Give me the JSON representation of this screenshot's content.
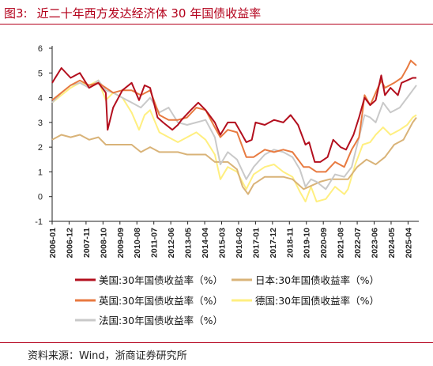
{
  "figure": {
    "label": "图3:",
    "title": "近二十年西方发达经济体 30 年国债收益率",
    "source": "资料来源：Wind，浙商证券研究所"
  },
  "chart_data": {
    "type": "line",
    "title": "近二十年西方发达经济体 30 年国债收益率",
    "xlabel": "",
    "ylabel": "",
    "ylim": [
      -1,
      6
    ],
    "yticks": [
      "-1",
      "0",
      "1",
      "2",
      "3",
      "4",
      "5",
      "6"
    ],
    "xticks": [
      "2006-01",
      "2006-12",
      "2007-11",
      "2008-10",
      "2009-09",
      "2010-08",
      "2011-07",
      "2012-06",
      "2013-05",
      "2014-04",
      "2015-03",
      "2016-02",
      "2017-01",
      "2017-12",
      "2018-11",
      "2019-10",
      "2020-09",
      "2021-08",
      "2022-07",
      "2023-06",
      "2024-05",
      "2025-04"
    ],
    "grid": false,
    "legend_position": "bottom",
    "series": [
      {
        "name": "美国:30年国债收益率（%）",
        "color": "#b30f1e",
        "x": [
          2006.0,
          2006.5,
          2007.0,
          2007.5,
          2008.0,
          2008.5,
          2008.9,
          2009.0,
          2009.3,
          2009.8,
          2010.3,
          2010.7,
          2011.0,
          2011.3,
          2011.7,
          2012.0,
          2012.5,
          2012.8,
          2013.0,
          2013.5,
          2013.9,
          2014.3,
          2014.8,
          2015.1,
          2015.5,
          2015.9,
          2016.2,
          2016.5,
          2016.8,
          2017.0,
          2017.5,
          2018.0,
          2018.5,
          2018.9,
          2019.3,
          2019.7,
          2019.9,
          2020.2,
          2020.5,
          2020.9,
          2021.2,
          2021.6,
          2021.9,
          2022.3,
          2022.6,
          2022.9,
          2023.2,
          2023.5,
          2023.8,
          2024.0,
          2024.3,
          2024.7,
          2024.9,
          2025.2,
          2025.5,
          2025.7
        ],
        "values": [
          4.6,
          5.2,
          4.8,
          5.0,
          4.4,
          4.6,
          4.2,
          2.7,
          3.6,
          4.3,
          4.6,
          3.9,
          4.5,
          4.4,
          3.2,
          3.0,
          2.7,
          2.9,
          3.1,
          3.5,
          3.8,
          3.5,
          3.0,
          2.5,
          3.0,
          3.0,
          2.6,
          2.2,
          2.3,
          3.0,
          2.9,
          3.1,
          3.0,
          3.3,
          2.9,
          2.1,
          2.2,
          1.4,
          1.4,
          1.6,
          2.3,
          2.0,
          1.9,
          2.5,
          3.2,
          4.0,
          3.7,
          3.9,
          4.9,
          4.1,
          4.4,
          4.1,
          4.6,
          4.7,
          4.8,
          4.8
        ]
      },
      {
        "name": "日本:30年国债收益率（%）",
        "color": "#d9b378",
        "x": [
          2006.0,
          2006.5,
          2007.0,
          2007.5,
          2008.0,
          2008.5,
          2008.9,
          2009.3,
          2009.8,
          2010.3,
          2010.8,
          2011.3,
          2011.8,
          2012.3,
          2012.8,
          2013.3,
          2013.8,
          2014.3,
          2014.8,
          2015.1,
          2015.5,
          2016.0,
          2016.3,
          2016.6,
          2016.9,
          2017.5,
          2018.0,
          2018.5,
          2019.0,
          2019.6,
          2019.9,
          2020.5,
          2021.0,
          2021.5,
          2022.0,
          2022.5,
          2023.0,
          2023.5,
          2024.0,
          2024.5,
          2025.0,
          2025.5,
          2025.7
        ],
        "values": [
          2.3,
          2.5,
          2.4,
          2.5,
          2.3,
          2.4,
          2.1,
          2.1,
          2.1,
          2.1,
          1.8,
          2.0,
          1.8,
          1.8,
          1.8,
          1.7,
          1.7,
          1.7,
          1.4,
          1.4,
          1.4,
          1.1,
          0.4,
          0.1,
          0.5,
          0.8,
          0.8,
          0.8,
          0.7,
          0.3,
          0.4,
          0.6,
          0.7,
          0.7,
          0.7,
          1.2,
          1.5,
          1.3,
          1.6,
          2.1,
          2.3,
          3.0,
          3.2
        ]
      },
      {
        "name": "英国:30年国债收益率（%）",
        "color": "#e87a40",
        "x": [
          2006.0,
          2006.5,
          2007.0,
          2007.5,
          2008.0,
          2008.5,
          2008.9,
          2009.3,
          2009.8,
          2010.3,
          2010.8,
          2011.3,
          2011.8,
          2012.3,
          2012.8,
          2013.3,
          2013.8,
          2014.3,
          2014.8,
          2015.1,
          2015.5,
          2016.0,
          2016.5,
          2016.9,
          2017.5,
          2018.0,
          2018.5,
          2019.0,
          2019.6,
          2019.9,
          2020.3,
          2020.8,
          2021.3,
          2021.8,
          2022.2,
          2022.6,
          2022.8,
          2022.9,
          2023.2,
          2023.5,
          2023.8,
          2024.0,
          2024.5,
          2024.9,
          2025.2,
          2025.4,
          2025.7
        ],
        "values": [
          3.9,
          4.2,
          4.5,
          4.7,
          4.5,
          4.6,
          4.4,
          4.2,
          4.3,
          4.3,
          4.1,
          4.3,
          3.3,
          3.1,
          3.1,
          3.2,
          3.6,
          3.5,
          2.8,
          2.4,
          2.7,
          2.6,
          1.6,
          1.6,
          1.9,
          1.8,
          1.9,
          1.8,
          1.2,
          1.2,
          1.0,
          1.0,
          1.4,
          1.2,
          1.9,
          2.4,
          3.5,
          4.1,
          3.7,
          4.2,
          4.7,
          4.4,
          4.6,
          4.8,
          5.2,
          5.5,
          5.3
        ]
      },
      {
        "name": "德国:30年国债收益率（%）",
        "color": "#ffef80",
        "x": [
          2006.0,
          2006.5,
          2007.0,
          2007.5,
          2008.0,
          2008.5,
          2008.9,
          2009.3,
          2009.8,
          2010.3,
          2010.7,
          2011.0,
          2011.3,
          2011.8,
          2012.3,
          2012.8,
          2013.3,
          2013.8,
          2014.3,
          2014.8,
          2015.1,
          2015.5,
          2016.0,
          2016.5,
          2016.9,
          2017.5,
          2018.0,
          2018.5,
          2019.0,
          2019.4,
          2019.7,
          2020.0,
          2020.3,
          2020.8,
          2021.3,
          2021.8,
          2022.0,
          2022.4,
          2022.8,
          2023.2,
          2023.5,
          2023.9,
          2024.3,
          2024.8,
          2025.2,
          2025.5,
          2025.7
        ],
        "values": [
          3.8,
          4.1,
          4.4,
          4.6,
          4.5,
          4.7,
          3.9,
          4.2,
          4.0,
          3.4,
          2.7,
          3.3,
          3.5,
          2.6,
          2.4,
          2.2,
          2.4,
          2.6,
          2.3,
          1.7,
          0.7,
          1.2,
          1.0,
          0.3,
          0.9,
          1.2,
          1.3,
          1.0,
          0.8,
          0.2,
          -0.2,
          0.4,
          -0.2,
          -0.1,
          0.4,
          0.1,
          0.3,
          1.3,
          2.1,
          2.2,
          2.5,
          2.8,
          2.5,
          2.7,
          2.9,
          3.2,
          3.3
        ]
      },
      {
        "name": "法国:30年国债收益率（%）",
        "color": "#c9c9c9",
        "x": [
          2006.0,
          2006.5,
          2007.0,
          2007.5,
          2008.0,
          2008.5,
          2008.9,
          2009.3,
          2009.8,
          2010.3,
          2010.8,
          2011.3,
          2011.8,
          2012.3,
          2012.8,
          2013.3,
          2013.8,
          2014.3,
          2014.8,
          2015.1,
          2015.5,
          2016.0,
          2016.5,
          2016.9,
          2017.5,
          2018.0,
          2018.5,
          2019.0,
          2019.4,
          2019.7,
          2020.0,
          2020.3,
          2020.8,
          2021.3,
          2021.8,
          2022.2,
          2022.6,
          2022.9,
          2023.2,
          2023.5,
          2023.9,
          2024.3,
          2024.8,
          2025.2,
          2025.5,
          2025.7
        ],
        "values": [
          3.8,
          4.2,
          4.5,
          4.6,
          4.4,
          4.7,
          4.3,
          4.2,
          4.0,
          3.8,
          3.6,
          4.0,
          3.4,
          3.6,
          3.0,
          2.9,
          3.0,
          3.1,
          2.4,
          1.3,
          1.8,
          1.5,
          0.7,
          1.2,
          1.7,
          1.9,
          1.8,
          1.6,
          1.1,
          0.4,
          0.7,
          0.6,
          0.3,
          0.9,
          0.8,
          1.2,
          2.4,
          3.3,
          3.2,
          3.0,
          3.8,
          3.4,
          3.6,
          4.0,
          4.3,
          4.5
        ]
      }
    ]
  }
}
